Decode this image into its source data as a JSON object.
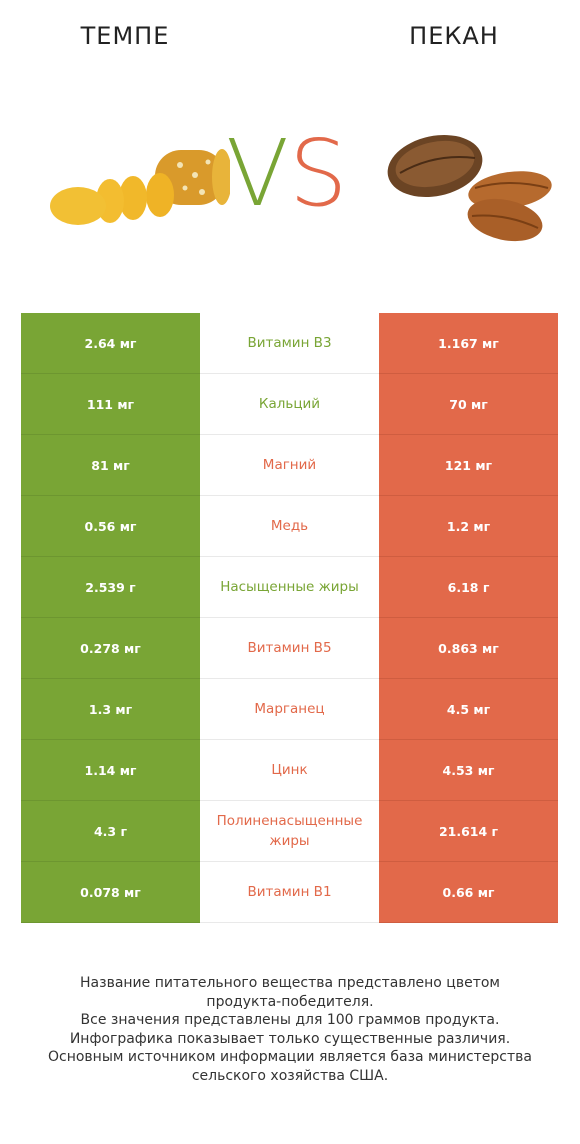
{
  "header": {
    "left_title": "ТЕМПЕ",
    "right_title": "ПЕКАН",
    "vs_v": "V",
    "vs_s": "S"
  },
  "colors": {
    "winner_left": "#79a535",
    "winner_right": "#e2694a"
  },
  "rows": [
    {
      "left": "2.64 мг",
      "nutrient": "Витамин B3",
      "right": "1.167 мг",
      "winner": "left"
    },
    {
      "left": "111 мг",
      "nutrient": "Кальций",
      "right": "70 мг",
      "winner": "left"
    },
    {
      "left": "81 мг",
      "nutrient": "Магний",
      "right": "121 мг",
      "winner": "right"
    },
    {
      "left": "0.56 мг",
      "nutrient": "Медь",
      "right": "1.2 мг",
      "winner": "right"
    },
    {
      "left": "2.539 г",
      "nutrient": "Насыщенные жиры",
      "right": "6.18 г",
      "winner": "left"
    },
    {
      "left": "0.278 мг",
      "nutrient": "Витамин B5",
      "right": "0.863 мг",
      "winner": "right"
    },
    {
      "left": "1.3 мг",
      "nutrient": "Марганец",
      "right": "4.5 мг",
      "winner": "right"
    },
    {
      "left": "1.14 мг",
      "nutrient": "Цинк",
      "right": "4.53 мг",
      "winner": "right"
    },
    {
      "left": "4.3 г",
      "nutrient": "Полиненасыщенные жиры",
      "right": "21.614 г",
      "winner": "right"
    },
    {
      "left": "0.078 мг",
      "nutrient": "Витамин B1",
      "right": "0.66 мг",
      "winner": "right"
    }
  ],
  "footer": {
    "line1": "Название питательного вещества представлено цветом",
    "line2": "продукта-победителя.",
    "line3": "Все значения представлены для 100 граммов продукта.",
    "line4": "Инфографика показывает только существенные различия.",
    "line5": "Основным источником информации является база министерства",
    "line6": "сельского хозяйства США."
  }
}
